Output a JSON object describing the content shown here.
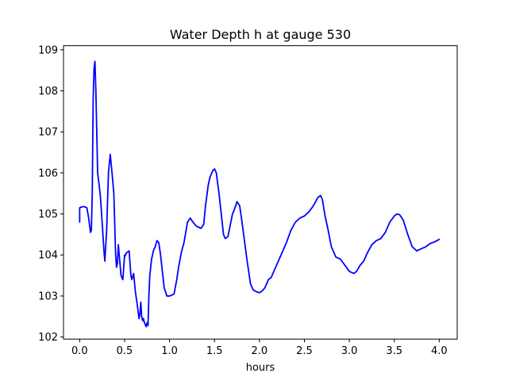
{
  "chart_data": {
    "type": "line",
    "title": "Water Depth h at gauge 530",
    "xlabel": "hours",
    "ylabel": "",
    "xlim": [
      -0.18,
      4.2
    ],
    "ylim": [
      101.95,
      109.1
    ],
    "xticks": [
      0.0,
      0.5,
      1.0,
      1.5,
      2.0,
      2.5,
      3.0,
      3.5,
      4.0
    ],
    "xtick_labels": [
      "0.0",
      "0.5",
      "1.0",
      "1.5",
      "2.0",
      "2.5",
      "3.0",
      "3.5",
      "4.0"
    ],
    "yticks": [
      102,
      103,
      104,
      105,
      106,
      107,
      108,
      109
    ],
    "ytick_labels": [
      "102",
      "103",
      "104",
      "105",
      "106",
      "107",
      "108",
      "109"
    ],
    "grid": false,
    "legend": null,
    "series": [
      {
        "color": "#0000ff",
        "x": [
          0.0,
          0.0,
          0.02,
          0.05,
          0.08,
          0.1,
          0.12,
          0.13,
          0.14,
          0.15,
          0.16,
          0.17,
          0.18,
          0.2,
          0.23,
          0.25,
          0.27,
          0.28,
          0.3,
          0.32,
          0.34,
          0.36,
          0.38,
          0.4,
          0.41,
          0.42,
          0.43,
          0.45,
          0.46,
          0.48,
          0.5,
          0.5,
          0.52,
          0.55,
          0.56,
          0.57,
          0.58,
          0.6,
          0.62,
          0.64,
          0.66,
          0.67,
          0.68,
          0.69,
          0.7,
          0.71,
          0.72,
          0.74,
          0.75,
          0.76,
          0.77,
          0.78,
          0.79,
          0.8,
          0.82,
          0.84,
          0.86,
          0.88,
          0.9,
          0.92,
          0.94,
          0.97,
          1.0,
          1.02,
          1.05,
          1.08,
          1.1,
          1.13,
          1.16,
          1.2,
          1.23,
          1.26,
          1.3,
          1.35,
          1.38,
          1.4,
          1.43,
          1.45,
          1.48,
          1.5,
          1.52,
          1.55,
          1.58,
          1.6,
          1.62,
          1.65,
          1.7,
          1.72,
          1.75,
          1.78,
          1.8,
          1.83,
          1.86,
          1.9,
          1.93,
          1.97,
          2.0,
          2.03,
          2.06,
          2.1,
          2.13,
          2.16,
          2.2,
          2.25,
          2.3,
          2.35,
          2.4,
          2.45,
          2.5,
          2.55,
          2.6,
          2.65,
          2.68,
          2.7,
          2.73,
          2.76,
          2.8,
          2.85,
          2.9,
          2.95,
          3.0,
          3.05,
          3.08,
          3.12,
          3.16,
          3.2,
          3.25,
          3.3,
          3.35,
          3.4,
          3.45,
          3.5,
          3.53,
          3.56,
          3.6,
          3.65,
          3.7,
          3.75,
          3.8,
          3.85,
          3.9,
          3.95,
          4.0
        ],
        "y": [
          104.8,
          105.15,
          105.17,
          105.18,
          105.15,
          104.9,
          104.55,
          104.6,
          105.5,
          107.8,
          108.55,
          108.72,
          108.0,
          106.0,
          105.45,
          104.8,
          104.1,
          103.85,
          104.6,
          106.0,
          106.45,
          106.0,
          105.5,
          104.0,
          103.7,
          103.8,
          104.25,
          103.75,
          103.5,
          103.4,
          104.0,
          103.95,
          104.05,
          104.1,
          103.8,
          103.5,
          103.4,
          103.55,
          103.1,
          102.8,
          102.45,
          102.55,
          102.85,
          102.5,
          102.4,
          102.45,
          102.35,
          102.25,
          102.35,
          102.28,
          103.0,
          103.5,
          103.7,
          103.9,
          104.1,
          104.2,
          104.35,
          104.3,
          104.0,
          103.6,
          103.2,
          103.0,
          103.0,
          103.02,
          103.05,
          103.4,
          103.7,
          104.05,
          104.3,
          104.8,
          104.9,
          104.8,
          104.7,
          104.65,
          104.75,
          105.2,
          105.7,
          105.9,
          106.05,
          106.1,
          106.0,
          105.5,
          104.9,
          104.5,
          104.4,
          104.45,
          105.0,
          105.1,
          105.3,
          105.2,
          104.9,
          104.4,
          103.9,
          103.3,
          103.15,
          103.1,
          103.08,
          103.12,
          103.2,
          103.4,
          103.45,
          103.6,
          103.8,
          104.05,
          104.3,
          104.6,
          104.8,
          104.9,
          104.95,
          105.05,
          105.2,
          105.4,
          105.45,
          105.35,
          104.95,
          104.65,
          104.2,
          103.95,
          103.9,
          103.75,
          103.6,
          103.55,
          103.6,
          103.75,
          103.85,
          104.05,
          104.25,
          104.35,
          104.4,
          104.55,
          104.8,
          104.95,
          105.0,
          104.98,
          104.85,
          104.5,
          104.2,
          104.1,
          104.15,
          104.2,
          104.28,
          104.32,
          104.38
        ]
      }
    ]
  }
}
